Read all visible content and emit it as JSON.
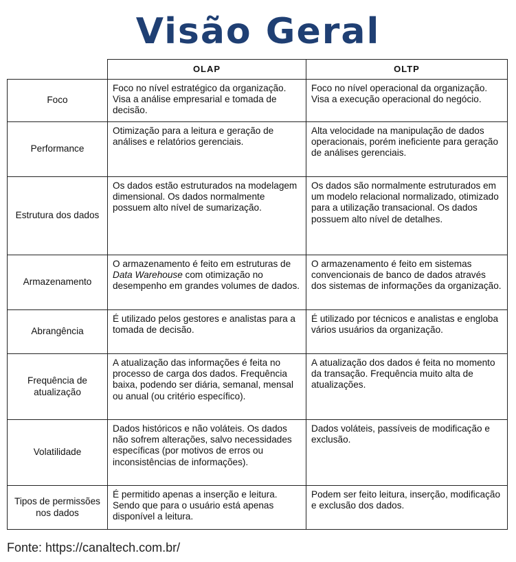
{
  "title": "Visão Geral",
  "columns": [
    "OLAP",
    "OLTP"
  ],
  "rows": [
    {
      "label": "Foco",
      "olap": "Foco no nível estratégico da organização. Visa a análise empresarial e tomada de decisão.",
      "oltp": "Foco no nível operacional da organização. Visa a execução operacional do negócio."
    },
    {
      "label": "Performance",
      "olap": "Otimização para a leitura e geração de análises e relatórios gerenciais.",
      "oltp": "Alta velocidade na manipulação de dados operacionais, porém ineficiente para geração de análises gerenciais."
    },
    {
      "label": "Estrutura dos dados",
      "olap": "Os dados estão estruturados na modelagem dimensional. Os dados normalmente possuem alto nível de sumarização.",
      "oltp": "Os dados são normalmente estruturados em um modelo relacional normalizado, otimizado para a utilização transacional. Os dados possuem alto nível de detalhes."
    },
    {
      "label": "Armazenamento",
      "olap_a": "O armazenamento é feito em estruturas de ",
      "olap_i": "Data Warehouse",
      "olap_b": " com otimização no desempenho em grandes volumes de dados.",
      "oltp": "O armazenamento é feito em sistemas convencionais de banco de dados através dos sistemas de informações da organização."
    },
    {
      "label": "Abrangência",
      "olap": "É utilizado pelos gestores e analistas para a tomada de decisão.",
      "oltp": "É utilizado por técnicos e analistas e engloba vários usuários da organização."
    },
    {
      "label": "Frequência de atualização",
      "olap": "A atualização das informações é feita no processo de carga dos dados. Frequência baixa, podendo ser diária, semanal, mensal ou anual (ou critério específico).",
      "oltp": "A atualização dos dados é feita no momento da transação. Frequência muito alta de atualizações."
    },
    {
      "label": "Volatilidade",
      "olap": "Dados históricos e não voláteis. Os dados não sofrem alterações, salvo necessidades específicas (por motivos de erros ou inconsistências de informações).",
      "oltp": "Dados voláteis, passíveis de modificação e exclusão."
    },
    {
      "label": "Tipos de permissões nos dados",
      "olap": "É permitido apenas a inserção e leitura. Sendo que para o usuário está apenas disponível a leitura.",
      "oltp": "Podem ser feito leitura, inserção, modificação e exclusão dos dados."
    }
  ],
  "source": "Fonte: https://canaltech.com.br/"
}
